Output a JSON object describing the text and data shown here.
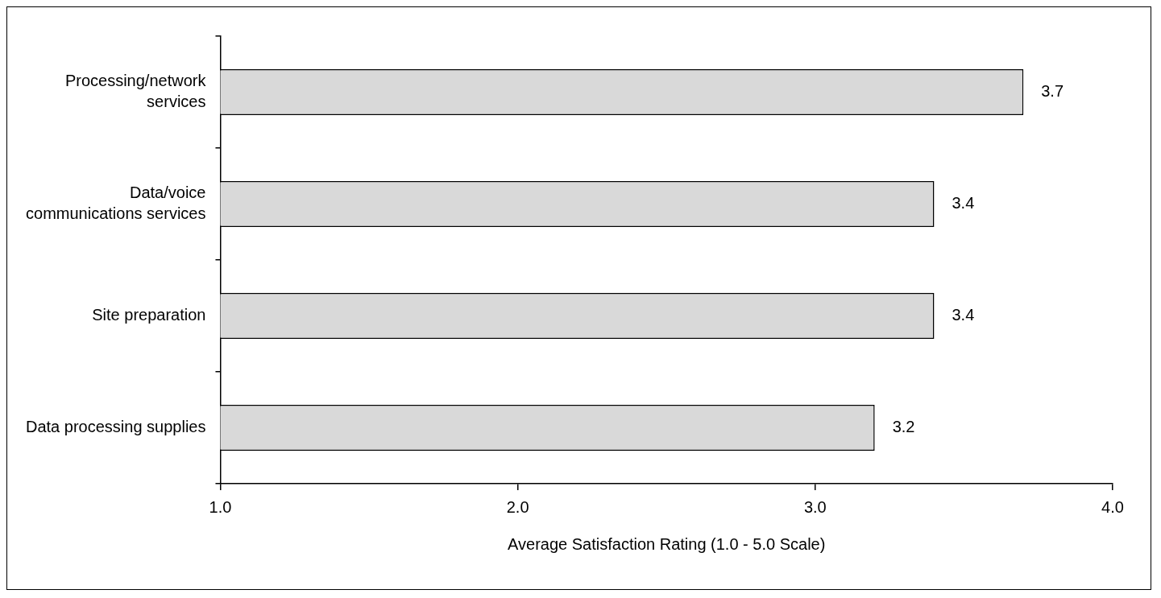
{
  "chart_data": {
    "type": "bar",
    "orientation": "horizontal",
    "xlabel": "Average Satisfaction Rating (1.0 - 5.0 Scale)",
    "categories": [
      "Processing/network services",
      "Data/voice communications services",
      "Site preparation",
      "Data processing supplies"
    ],
    "values": [
      3.7,
      3.4,
      3.4,
      3.2
    ],
    "color": "#d9d9d9",
    "data_labels": true,
    "xlim": [
      1,
      4
    ],
    "xticks": [
      {
        "value": 1,
        "label": "1.0"
      },
      {
        "value": 2,
        "label": "2.0"
      },
      {
        "value": 3,
        "label": "3.0"
      },
      {
        "value": 4,
        "label": "4.0"
      }
    ],
    "grid": false,
    "legend": false
  }
}
